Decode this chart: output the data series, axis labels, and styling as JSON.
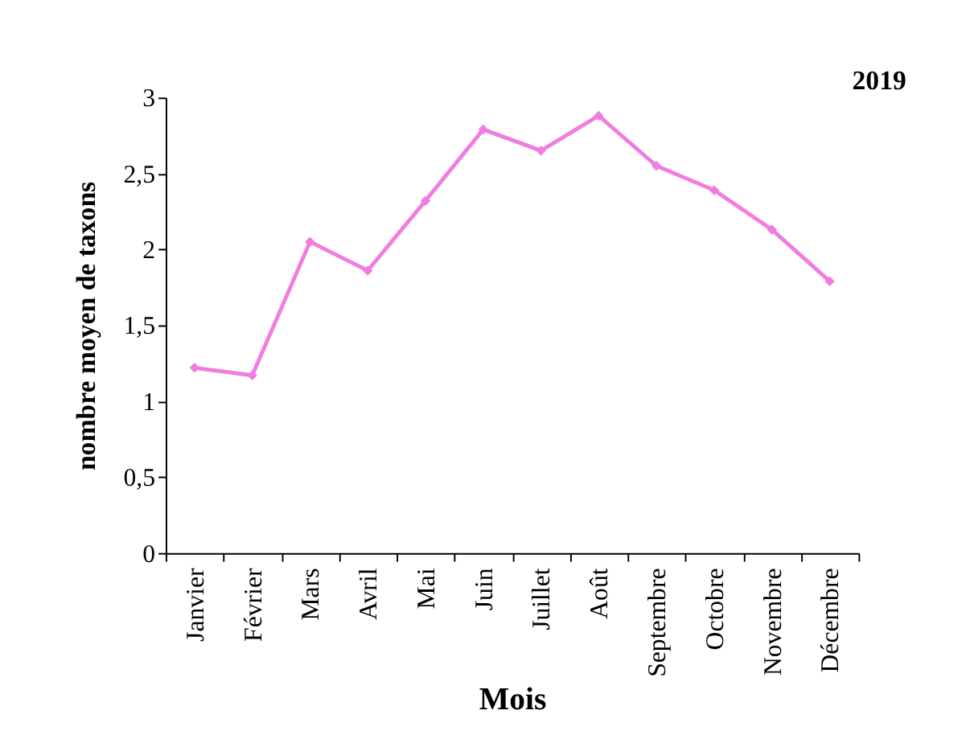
{
  "chart_data": {
    "type": "line",
    "xlabel": "Mois",
    "ylabel": "nombre moyen de taxons",
    "annotations": [
      "2019"
    ],
    "categories": [
      "Janvier",
      "Février",
      "Mars",
      "Avril",
      "Mai",
      "Juin",
      "Juillet",
      "Août",
      "Septembre",
      "Octobre",
      "Novembre",
      "Décembre"
    ],
    "series": [
      {
        "color": "#f07ee0",
        "values": [
          1.22,
          1.17,
          2.05,
          1.86,
          2.32,
          2.79,
          2.65,
          2.88,
          2.55,
          2.39,
          2.13,
          1.79
        ]
      }
    ],
    "ylim": [
      0,
      3
    ],
    "yticks": [
      0,
      {
        "value": 0.5,
        "label": "0,5"
      },
      1,
      {
        "value": 1.5,
        "label": "1,5"
      },
      2,
      {
        "value": 2.5,
        "label": "2,5"
      },
      3
    ],
    "marker": "diamond",
    "line_style": "solid",
    "grid": false,
    "legend": false
  }
}
